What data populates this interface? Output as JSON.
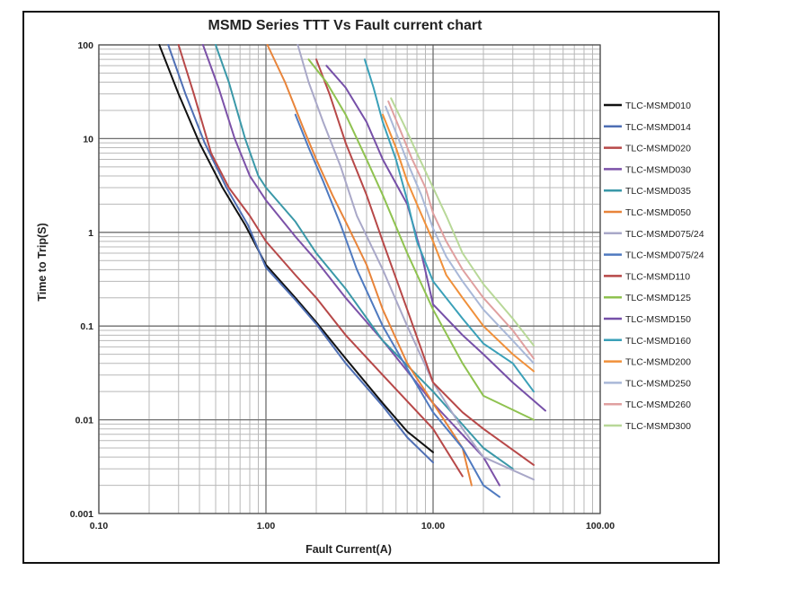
{
  "chart_data": {
    "type": "line",
    "title": "MSMD Series TTT Vs Fault current chart",
    "xlabel": "Fault Current(A)",
    "ylabel": "Time to Trip(S)",
    "x_scale": "log",
    "y_scale": "log",
    "xlim": [
      0.1,
      100
    ],
    "ylim": [
      0.001,
      100
    ],
    "x_ticks": [
      {
        "value": 0.1,
        "label": "0.10"
      },
      {
        "value": 1,
        "label": "1.00"
      },
      {
        "value": 10,
        "label": "10.00"
      },
      {
        "value": 100,
        "label": "100.00"
      }
    ],
    "y_ticks": [
      {
        "value": 0.001,
        "label": "0.001"
      },
      {
        "value": 0.01,
        "label": "0.01"
      },
      {
        "value": 0.1,
        "label": "0.1"
      },
      {
        "value": 1,
        "label": "1"
      },
      {
        "value": 10,
        "label": "10"
      },
      {
        "value": 100,
        "label": "100"
      }
    ],
    "grid": true,
    "legend_position": "right",
    "series": [
      {
        "name": "TLC-MSMD010",
        "color": "#111111",
        "points": [
          [
            0.23,
            100
          ],
          [
            0.3,
            30
          ],
          [
            0.4,
            9
          ],
          [
            0.55,
            3
          ],
          [
            0.75,
            1.2
          ],
          [
            1,
            0.45
          ],
          [
            1.5,
            0.2
          ],
          [
            2,
            0.11
          ],
          [
            3,
            0.045
          ],
          [
            5,
            0.015
          ],
          [
            7,
            0.0075
          ],
          [
            10,
            0.0045
          ]
        ]
      },
      {
        "name": "TLC-MSMD014",
        "color": "#4f6fb4",
        "points": [
          [
            0.26,
            100
          ],
          [
            0.33,
            30
          ],
          [
            0.43,
            9
          ],
          [
            0.58,
            3
          ],
          [
            0.78,
            1.2
          ],
          [
            1,
            0.42
          ],
          [
            1.5,
            0.19
          ],
          [
            2,
            0.105
          ],
          [
            3,
            0.04
          ],
          [
            5,
            0.014
          ],
          [
            7,
            0.0065
          ],
          [
            10,
            0.0035
          ]
        ]
      },
      {
        "name": "TLC-MSMD020",
        "color": "#b74848",
        "points": [
          [
            0.3,
            100
          ],
          [
            0.37,
            30
          ],
          [
            0.47,
            7
          ],
          [
            0.6,
            3
          ],
          [
            0.8,
            1.5
          ],
          [
            1,
            0.8
          ],
          [
            1.5,
            0.35
          ],
          [
            2,
            0.2
          ],
          [
            3,
            0.08
          ],
          [
            5,
            0.03
          ],
          [
            10,
            0.008
          ],
          [
            15,
            0.0025
          ]
        ]
      },
      {
        "name": "TLC-MSMD030",
        "color": "#7c52a8",
        "points": [
          [
            0.42,
            100
          ],
          [
            0.52,
            35
          ],
          [
            0.65,
            10
          ],
          [
            0.8,
            4
          ],
          [
            1,
            2.2
          ],
          [
            1.5,
            0.9
          ],
          [
            2,
            0.5
          ],
          [
            3,
            0.2
          ],
          [
            5,
            0.07
          ],
          [
            10,
            0.015
          ],
          [
            20,
            0.004
          ],
          [
            25,
            0.002
          ]
        ]
      },
      {
        "name": "TLC-MSMD035",
        "color": "#3a98a8",
        "points": [
          [
            0.5,
            100
          ],
          [
            0.6,
            40
          ],
          [
            0.75,
            10
          ],
          [
            0.9,
            4
          ],
          [
            1,
            3
          ],
          [
            1.5,
            1.3
          ],
          [
            2,
            0.6
          ],
          [
            3,
            0.25
          ],
          [
            5,
            0.07
          ],
          [
            10,
            0.02
          ],
          [
            20,
            0.005
          ],
          [
            30,
            0.003
          ]
        ]
      },
      {
        "name": "TLC-MSMD050",
        "color": "#e8843a",
        "points": [
          [
            1.02,
            100
          ],
          [
            1.3,
            40
          ],
          [
            1.7,
            12
          ],
          [
            2,
            6
          ],
          [
            2.5,
            2.5
          ],
          [
            3,
            1.3
          ],
          [
            4,
            0.45
          ],
          [
            5,
            0.15
          ],
          [
            7,
            0.04
          ],
          [
            10,
            0.015
          ],
          [
            15,
            0.005
          ],
          [
            17,
            0.002
          ]
        ]
      },
      {
        "name": "TLC-MSMD075/24",
        "color": "#a9a8c8",
        "points": [
          [
            1.55,
            100
          ],
          [
            1.8,
            40
          ],
          [
            2.2,
            15
          ],
          [
            2.8,
            5
          ],
          [
            3.5,
            1.5
          ],
          [
            5,
            0.4
          ],
          [
            7,
            0.1
          ],
          [
            10,
            0.025
          ],
          [
            15,
            0.008
          ],
          [
            20,
            0.004
          ],
          [
            40,
            0.0023
          ]
        ]
      },
      {
        "name": "TLC-MSMD075/24",
        "color": "#4f7ac0",
        "points": [
          [
            1.5,
            18
          ],
          [
            1.8,
            8
          ],
          [
            2.2,
            3.5
          ],
          [
            2.8,
            1.2
          ],
          [
            3.5,
            0.4
          ],
          [
            5,
            0.1
          ],
          [
            7,
            0.035
          ],
          [
            10,
            0.012
          ],
          [
            15,
            0.005
          ],
          [
            20,
            0.002
          ],
          [
            25,
            0.0015
          ]
        ]
      },
      {
        "name": "TLC-MSMD110",
        "color": "#b74848",
        "points": [
          [
            2,
            70
          ],
          [
            2.4,
            30
          ],
          [
            3,
            9
          ],
          [
            4,
            2.5
          ],
          [
            5,
            0.8
          ],
          [
            7,
            0.15
          ],
          [
            10,
            0.025
          ],
          [
            15,
            0.012
          ],
          [
            20,
            0.008
          ],
          [
            40,
            0.0033
          ]
        ]
      },
      {
        "name": "TLC-MSMD125",
        "color": "#8fc250",
        "points": [
          [
            1.8,
            70
          ],
          [
            2.3,
            40
          ],
          [
            3,
            18
          ],
          [
            4,
            6
          ],
          [
            5,
            2.5
          ],
          [
            7,
            0.6
          ],
          [
            10,
            0.15
          ],
          [
            15,
            0.04
          ],
          [
            20,
            0.018
          ],
          [
            40,
            0.01
          ]
        ]
      },
      {
        "name": "TLC-MSMD150",
        "color": "#7650a8",
        "points": [
          [
            2.3,
            60
          ],
          [
            3,
            35
          ],
          [
            4,
            15
          ],
          [
            5,
            6
          ],
          [
            7,
            2
          ],
          [
            8.5,
            0.6
          ],
          [
            10,
            0.17
          ],
          [
            15,
            0.08
          ],
          [
            20,
            0.05
          ],
          [
            30,
            0.025
          ],
          [
            47,
            0.0125
          ]
        ]
      },
      {
        "name": "TLC-MSMD160",
        "color": "#3aa0b8",
        "points": [
          [
            3.9,
            70
          ],
          [
            4.4,
            35
          ],
          [
            5,
            15
          ],
          [
            6,
            6
          ],
          [
            7,
            2.2
          ],
          [
            8,
            0.8
          ],
          [
            10,
            0.3
          ],
          [
            15,
            0.12
          ],
          [
            20,
            0.065
          ],
          [
            30,
            0.04
          ],
          [
            40,
            0.02
          ]
        ]
      },
      {
        "name": "TLC-MSMD200",
        "color": "#f0903a",
        "points": [
          [
            5,
            18
          ],
          [
            6,
            8
          ],
          [
            7,
            3.5
          ],
          [
            8,
            2
          ],
          [
            10,
            0.8
          ],
          [
            12,
            0.35
          ],
          [
            15,
            0.2
          ],
          [
            20,
            0.1
          ],
          [
            30,
            0.05
          ],
          [
            40,
            0.033
          ]
        ]
      },
      {
        "name": "TLC-MSMD250",
        "color": "#a9b8d8",
        "points": [
          [
            5.2,
            22
          ],
          [
            6.2,
            10
          ],
          [
            7.2,
            5
          ],
          [
            8.5,
            2.5
          ],
          [
            10,
            1.1
          ],
          [
            12,
            0.55
          ],
          [
            15,
            0.3
          ],
          [
            20,
            0.15
          ],
          [
            30,
            0.07
          ],
          [
            40,
            0.04
          ]
        ]
      },
      {
        "name": "TLC-MSMD260",
        "color": "#e0a0a0",
        "points": [
          [
            5.4,
            25
          ],
          [
            6.4,
            12
          ],
          [
            7.5,
            6
          ],
          [
            9,
            3
          ],
          [
            10,
            1.6
          ],
          [
            12,
            0.8
          ],
          [
            15,
            0.4
          ],
          [
            20,
            0.2
          ],
          [
            30,
            0.09
          ],
          [
            40,
            0.045
          ]
        ]
      },
      {
        "name": "TLC-MSMD300",
        "color": "#b8d898",
        "points": [
          [
            5.6,
            27
          ],
          [
            6.7,
            14
          ],
          [
            8,
            7
          ],
          [
            10,
            3
          ],
          [
            12,
            1.5
          ],
          [
            15,
            0.6
          ],
          [
            20,
            0.28
          ],
          [
            30,
            0.12
          ],
          [
            40,
            0.062
          ]
        ]
      }
    ]
  }
}
